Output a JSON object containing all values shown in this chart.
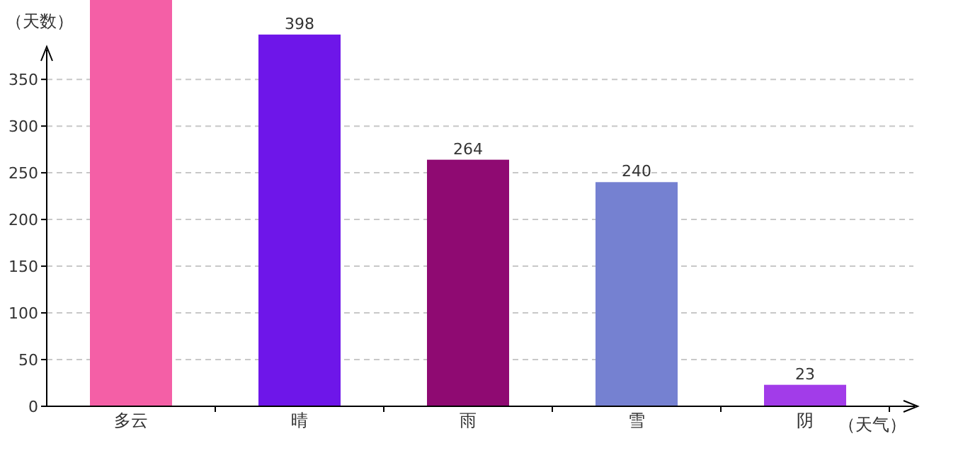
{
  "chart_data": {
    "type": "bar",
    "ylabel": "（天数）",
    "xlabel": "（天气）",
    "categories": [
      "多云",
      "晴",
      "雨",
      "雪",
      "阴"
    ],
    "values": [
      435,
      398,
      264,
      240,
      23
    ],
    "value_labels": [
      null,
      "398",
      "264",
      "240",
      "23"
    ],
    "colors": [
      "#f45fa6",
      "#6e16e9",
      "#8f0a72",
      "#7581d1",
      "#a23ce9"
    ],
    "ylim": [
      0,
      435
    ],
    "yticks": [
      0,
      50,
      100,
      150,
      200,
      250,
      300,
      350
    ],
    "grid": "y"
  }
}
